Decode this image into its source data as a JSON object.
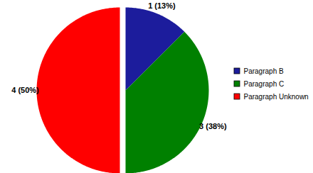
{
  "chart_data": {
    "type": "pie",
    "categories": [
      "Paragraph B",
      "Paragraph C",
      "Paragraph Unknown"
    ],
    "values": [
      1,
      3,
      4
    ],
    "value_labels": [
      "1 (13%)",
      "3 (38%)",
      "4 (50%)"
    ],
    "colors": [
      "#1c1c9c",
      "#008000",
      "#ff0000"
    ],
    "data_labels": true,
    "legend": "right"
  }
}
